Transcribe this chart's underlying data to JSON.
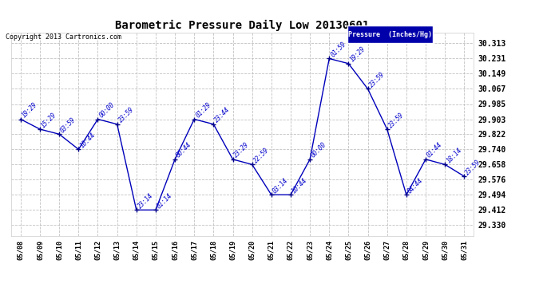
{
  "title": "Barometric Pressure Daily Low 20130601",
  "copyright": "Copyright 2013 Cartronics.com",
  "legend_label": "Pressure  (Inches/Hg)",
  "dates": [
    "05/08",
    "05/09",
    "05/10",
    "05/11",
    "05/12",
    "05/13",
    "05/14",
    "05/15",
    "05/16",
    "05/17",
    "05/18",
    "05/19",
    "05/20",
    "05/21",
    "05/22",
    "05/23",
    "05/24",
    "05/25",
    "05/26",
    "05/27",
    "05/28",
    "05/29",
    "05/30",
    "05/31"
  ],
  "values": [
    29.903,
    29.849,
    29.822,
    29.74,
    29.903,
    29.876,
    29.412,
    29.412,
    29.686,
    29.903,
    29.876,
    29.686,
    29.658,
    29.494,
    29.494,
    29.686,
    30.231,
    30.204,
    30.067,
    29.849,
    29.494,
    29.686,
    29.658,
    29.594
  ],
  "annotations": [
    "19:29",
    "15:29",
    "03:59",
    "10:44",
    "00:00",
    "23:59",
    "23:14",
    "01:14",
    "00:44",
    "01:29",
    "23:44",
    "23:29",
    "22:59",
    "03:14",
    "10:44",
    "00:00",
    "01:59",
    "19:29",
    "23:59",
    "23:59",
    "04:44",
    "01:44",
    "18:14",
    "23:59"
  ],
  "yticks": [
    29.33,
    29.412,
    29.494,
    29.576,
    29.658,
    29.74,
    29.822,
    29.903,
    29.985,
    30.067,
    30.149,
    30.231,
    30.313
  ],
  "ylim": [
    29.27,
    30.37
  ],
  "line_color": "#0000bb",
  "marker_color": "#000088",
  "annotation_color": "#0000cc",
  "bg_color": "#ffffff",
  "grid_color": "#bbbbbb",
  "title_color": "#000000",
  "copyright_color": "#000000",
  "legend_bg": "#0000aa",
  "legend_text_color": "#ffffff",
  "title_fontsize": 10,
  "copyright_fontsize": 6,
  "ytick_fontsize": 7,
  "xtick_fontsize": 6,
  "annotation_fontsize": 5.5
}
